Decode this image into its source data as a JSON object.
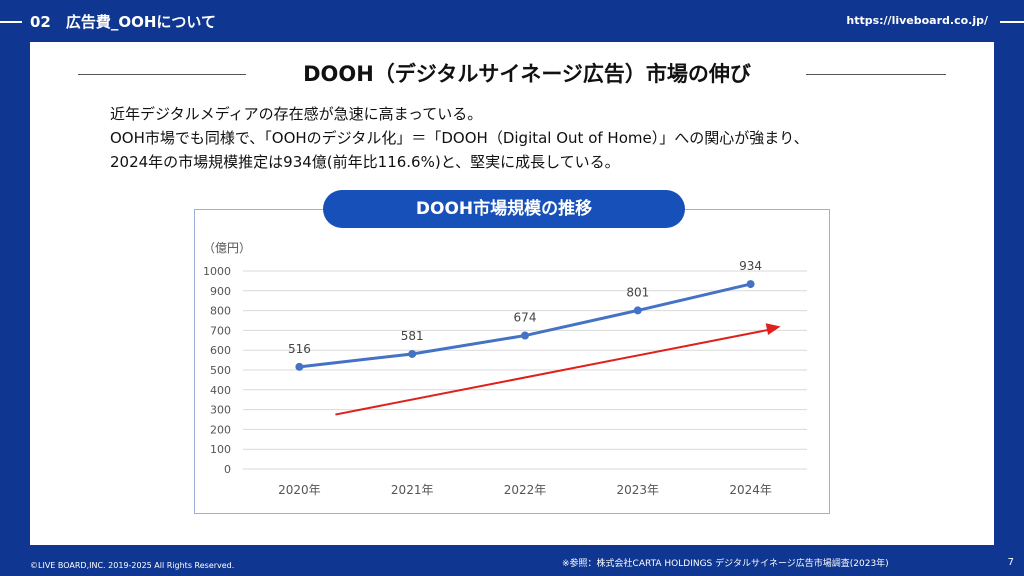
{
  "header": {
    "section_title": "02　広告費_OOHについて",
    "url": "https://liveboard.co.jp/"
  },
  "slide": {
    "title": "DOOH（デジタルサイネージ広告）市場の伸び",
    "description": [
      "近年デジタルメディアの存在感が急速に高まっている。",
      "OOH市場でも同様で、「OOHのデジタル化」＝「DOOH（Digital Out of Home）」への関心が強まり、",
      "2024年の市場規模推定は934億(前年比116.6%)と、堅実に成長している。"
    ],
    "chart_pill_title": "DOOH市場規模の推移"
  },
  "chart_data": {
    "type": "line",
    "ylabel": "（億円）",
    "categories": [
      "2020年",
      "2021年",
      "2022年",
      "2023年",
      "2024年"
    ],
    "series": [
      {
        "values": [
          516,
          581,
          674,
          801,
          934
        ],
        "color": "#4472c4"
      }
    ],
    "data_labels": [
      "516",
      "581",
      "674",
      "801",
      "934"
    ],
    "y_ticks": [
      0,
      100,
      200,
      300,
      400,
      500,
      600,
      700,
      800,
      900,
      1000
    ],
    "ylim": [
      0,
      1000
    ],
    "grid": true,
    "trend_arrow_color": "#e0201b"
  },
  "footer": {
    "copyright": "©LIVE BOARD,INC. 2019-2025 All Rights Reserved.",
    "note": "※参照：株式会社CARTA HOLDINGS デジタルサイネージ広告市場調査(2023年)",
    "page": "7"
  }
}
